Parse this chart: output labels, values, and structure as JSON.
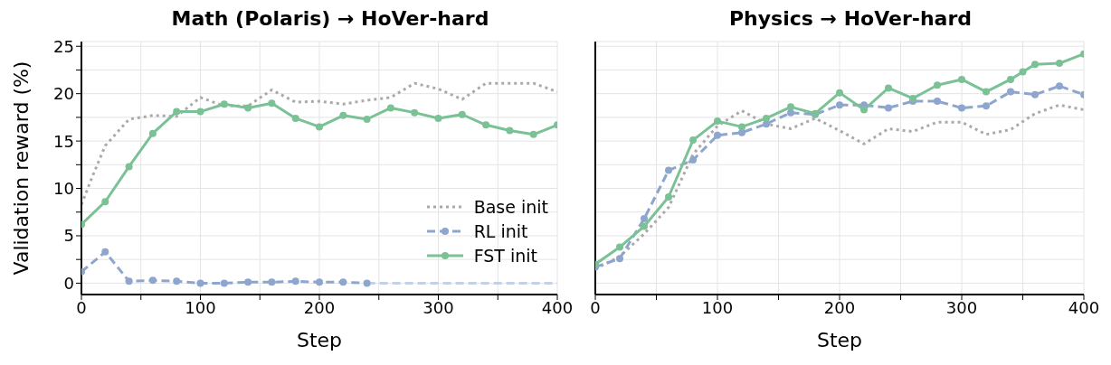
{
  "chart_data": [
    {
      "type": "line",
      "title": "Math (Polaris) → HoVer-hard",
      "xlabel": "Step",
      "ylabel": "Validation reward (%)",
      "xlim": [
        0,
        400
      ],
      "ylim": [
        -1.2,
        25.5
      ],
      "xticks": [
        0,
        {
          "value": 50,
          "label": null
        },
        100,
        {
          "value": 150,
          "label": null
        },
        200,
        {
          "value": 250,
          "label": null
        },
        300,
        {
          "value": 350,
          "label": null
        },
        400
      ],
      "yticks": [
        0,
        {
          "value": 2.5,
          "label": null
        },
        5,
        {
          "value": 7.5,
          "label": null
        },
        10,
        {
          "value": 12.5,
          "label": null
        },
        15,
        {
          "value": 17.5,
          "label": null
        },
        20,
        {
          "value": 22.5,
          "label": null
        },
        25
      ],
      "grid": true,
      "legend": "bottom right",
      "series": [
        {
          "name": "Base init",
          "color": "#aaaaaa",
          "marker": "none",
          "line_style": "dotted",
          "x": [
            0,
            10,
            20,
            40,
            60,
            80,
            100,
            120,
            140,
            160,
            180,
            200,
            220,
            240,
            260,
            280,
            300,
            320,
            340,
            360,
            380,
            400
          ],
          "values": [
            8.3,
            11.5,
            14.5,
            17.3,
            17.7,
            17.6,
            19.6,
            18.7,
            18.7,
            20.4,
            19.1,
            19.2,
            18.9,
            19.3,
            19.6,
            21.1,
            20.5,
            19.4,
            21.1,
            21.1,
            21.1,
            20.2
          ]
        },
        {
          "name": "RL init",
          "color": "#8ea6cd",
          "marker": "circle",
          "line_style": "dashed",
          "x": [
            0,
            20,
            40,
            60,
            80,
            100,
            120,
            140,
            160,
            180,
            200,
            220,
            240
          ],
          "values": [
            1.2,
            3.3,
            0.2,
            0.3,
            0.2,
            0,
            0,
            0.1,
            0.1,
            0.2,
            0.1,
            0.1,
            0
          ]
        },
        {
          "color": "#c3d0e6",
          "marker": "none",
          "line_style": "dashed",
          "x": [
            240,
            400
          ],
          "values": [
            0,
            0
          ]
        },
        {
          "name": "FST init",
          "color": "#7bc196",
          "marker": "circle",
          "line_style": "solid",
          "x": [
            0,
            20,
            40,
            60,
            80,
            100,
            120,
            140,
            160,
            180,
            200,
            220,
            240,
            260,
            280,
            300,
            320,
            340,
            360,
            380,
            400
          ],
          "values": [
            6.2,
            8.6,
            12.3,
            15.8,
            18.1,
            18.1,
            18.9,
            18.5,
            19.0,
            17.4,
            16.5,
            17.7,
            17.3,
            18.5,
            18.0,
            17.4,
            17.8,
            16.7,
            16.1,
            15.7,
            16.7
          ]
        }
      ]
    },
    {
      "type": "line",
      "title": "Physics → HoVer-hard",
      "xlabel": "Step",
      "xlim": [
        0,
        400
      ],
      "ylim": [
        -1.2,
        25.5
      ],
      "tick_labels": "x",
      "xticks": [
        0,
        {
          "value": 50,
          "label": null
        },
        100,
        {
          "value": 150,
          "label": null
        },
        200,
        {
          "value": 250,
          "label": null
        },
        300,
        {
          "value": 350,
          "label": null
        },
        400
      ],
      "yticks": [
        0,
        {
          "value": 2.5,
          "label": null
        },
        5,
        {
          "value": 7.5,
          "label": null
        },
        10,
        {
          "value": 12.5,
          "label": null
        },
        15,
        {
          "value": 17.5,
          "label": null
        },
        20,
        {
          "value": 22.5,
          "label": null
        },
        25
      ],
      "grid": true,
      "series": [
        {
          "color": "#aaaaaa",
          "marker": "none",
          "line_style": "dotted",
          "x": [
            0,
            20,
            40,
            60,
            80,
            100,
            120,
            140,
            160,
            180,
            200,
            220,
            240,
            260,
            280,
            300,
            320,
            340,
            360,
            380,
            400
          ],
          "values": [
            1.5,
            2.8,
            5.2,
            8.0,
            13.6,
            16.6,
            18.2,
            16.8,
            16.3,
            17.4,
            16.1,
            14.7,
            16.3,
            16.0,
            17.0,
            17.0,
            15.7,
            16.2,
            17.9,
            18.8,
            18.3
          ]
        },
        {
          "color": "#8ea6cd",
          "marker": "circle",
          "line_style": "dashed",
          "x": [
            0,
            20,
            40,
            60,
            80,
            100,
            120,
            140,
            160,
            180,
            200,
            220,
            240,
            260,
            280,
            300,
            320,
            340,
            360,
            380,
            400
          ],
          "values": [
            1.7,
            2.6,
            6.8,
            11.9,
            13.0,
            15.6,
            15.9,
            16.8,
            18.0,
            17.8,
            18.8,
            18.8,
            18.5,
            19.2,
            19.2,
            18.5,
            18.7,
            20.2,
            19.9,
            20.8,
            19.9
          ]
        },
        {
          "color": "#7bc196",
          "marker": "circle",
          "line_style": "solid",
          "x": [
            0,
            20,
            40,
            60,
            80,
            100,
            120,
            140,
            160,
            180,
            200,
            220,
            240,
            260,
            280,
            300,
            320,
            340,
            350,
            360,
            380,
            400
          ],
          "values": [
            2.0,
            3.8,
            6.0,
            9.1,
            15.1,
            17.1,
            16.5,
            17.4,
            18.6,
            17.9,
            20.1,
            18.3,
            20.6,
            19.5,
            20.9,
            21.5,
            20.2,
            21.5,
            22.3,
            23.1,
            23.2,
            24.2
          ]
        }
      ]
    }
  ]
}
